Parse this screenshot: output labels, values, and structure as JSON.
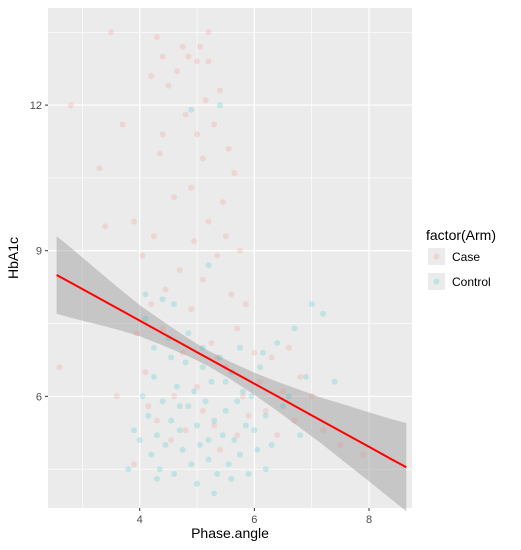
{
  "chart_data": {
    "type": "scatter",
    "xlabel": "Phase.angle",
    "ylabel": "HbA1c",
    "xlim": [
      2.4,
      8.75
    ],
    "ylim": [
      3.7,
      14.0
    ],
    "x_ticks": [
      4,
      6,
      8
    ],
    "y_ticks": [
      6,
      9,
      12
    ],
    "grid": true,
    "legend": {
      "title": "factor(Arm)",
      "position": "right"
    },
    "series": [
      {
        "name": "Case",
        "color": "#F8766D",
        "points": [
          [
            2.6,
            6.6
          ],
          [
            2.8,
            12.0
          ],
          [
            3.3,
            10.7
          ],
          [
            3.4,
            9.5
          ],
          [
            3.5,
            13.5
          ],
          [
            3.6,
            6.0
          ],
          [
            3.7,
            11.6
          ],
          [
            3.9,
            9.6
          ],
          [
            3.95,
            7.3
          ],
          [
            3.9,
            4.6
          ],
          [
            4.05,
            8.9
          ],
          [
            4.1,
            6.5
          ],
          [
            4.15,
            5.8
          ],
          [
            4.2,
            12.6
          ],
          [
            4.25,
            9.3
          ],
          [
            4.3,
            13.4
          ],
          [
            4.35,
            11.0
          ],
          [
            4.4,
            7.4
          ],
          [
            4.4,
            13.0
          ],
          [
            4.45,
            8.2
          ],
          [
            4.5,
            12.4
          ],
          [
            4.55,
            5.1
          ],
          [
            4.6,
            10.1
          ],
          [
            4.65,
            12.7
          ],
          [
            4.7,
            8.6
          ],
          [
            4.75,
            6.9
          ],
          [
            4.8,
            11.8
          ],
          [
            4.85,
            13.0
          ],
          [
            4.9,
            10.3
          ],
          [
            4.9,
            7.8
          ],
          [
            4.95,
            9.2
          ],
          [
            5.0,
            12.9
          ],
          [
            5.0,
            6.2
          ],
          [
            5.05,
            13.2
          ],
          [
            5.1,
            10.9
          ],
          [
            5.1,
            8.4
          ],
          [
            5.15,
            12.1
          ],
          [
            5.2,
            9.6
          ],
          [
            5.2,
            13.5
          ],
          [
            5.25,
            7.1
          ],
          [
            5.3,
            11.6
          ],
          [
            5.3,
            5.4
          ],
          [
            5.35,
            8.9
          ],
          [
            5.4,
            12.3
          ],
          [
            5.45,
            10.0
          ],
          [
            5.5,
            9.3
          ],
          [
            5.5,
            6.6
          ],
          [
            5.55,
            11.1
          ],
          [
            5.6,
            8.1
          ],
          [
            5.65,
            10.6
          ],
          [
            5.7,
            7.4
          ],
          [
            5.75,
            9.0
          ],
          [
            5.8,
            6.0
          ],
          [
            5.85,
            7.9
          ],
          [
            5.9,
            5.6
          ],
          [
            6.0,
            6.9
          ],
          [
            6.1,
            6.3
          ],
          [
            6.2,
            5.7
          ],
          [
            6.3,
            6.8
          ],
          [
            6.4,
            5.2
          ],
          [
            6.5,
            6.1
          ],
          [
            6.6,
            7.0
          ],
          [
            6.7,
            5.5
          ],
          [
            6.8,
            6.4
          ],
          [
            7.0,
            6.0
          ],
          [
            7.2,
            5.3
          ],
          [
            7.5,
            5.0
          ],
          [
            7.9,
            4.8
          ],
          [
            4.3,
            5.5
          ],
          [
            4.6,
            6.0
          ],
          [
            4.8,
            5.3
          ],
          [
            5.1,
            5.7
          ],
          [
            5.4,
            4.9
          ],
          [
            5.7,
            5.2
          ],
          [
            4.2,
            7.9
          ],
          [
            4.4,
            11.4
          ],
          [
            5.0,
            11.4
          ],
          [
            5.2,
            12.9
          ],
          [
            4.75,
            13.2
          ],
          [
            5.35,
            6.8
          ]
        ]
      },
      {
        "name": "Control",
        "color": "#00BFC4",
        "points": [
          [
            3.8,
            4.5
          ],
          [
            3.9,
            5.3
          ],
          [
            4.0,
            5.1
          ],
          [
            4.05,
            6.0
          ],
          [
            4.1,
            8.1
          ],
          [
            4.15,
            5.6
          ],
          [
            4.2,
            4.8
          ],
          [
            4.25,
            6.4
          ],
          [
            4.3,
            5.2
          ],
          [
            4.35,
            4.5
          ],
          [
            4.4,
            5.9
          ],
          [
            4.45,
            5.0
          ],
          [
            4.5,
            7.2
          ],
          [
            4.55,
            5.5
          ],
          [
            4.6,
            4.4
          ],
          [
            4.65,
            6.2
          ],
          [
            4.7,
            5.3
          ],
          [
            4.75,
            4.9
          ],
          [
            4.8,
            6.7
          ],
          [
            4.85,
            5.8
          ],
          [
            4.9,
            4.6
          ],
          [
            4.95,
            6.1
          ],
          [
            5.0,
            5.4
          ],
          [
            5.05,
            5.0
          ],
          [
            5.1,
            7.0
          ],
          [
            5.15,
            5.9
          ],
          [
            5.2,
            4.7
          ],
          [
            5.25,
            6.3
          ],
          [
            5.3,
            5.5
          ],
          [
            5.35,
            4.4
          ],
          [
            5.4,
            6.8
          ],
          [
            5.45,
            5.2
          ],
          [
            5.5,
            5.7
          ],
          [
            5.55,
            4.6
          ],
          [
            5.6,
            6.5
          ],
          [
            5.65,
            5.1
          ],
          [
            5.7,
            5.9
          ],
          [
            5.75,
            4.8
          ],
          [
            5.8,
            6.1
          ],
          [
            5.85,
            5.4
          ],
          [
            5.9,
            4.4
          ],
          [
            5.95,
            6.0
          ],
          [
            6.0,
            5.3
          ],
          [
            6.05,
            4.9
          ],
          [
            6.1,
            6.6
          ],
          [
            6.2,
            5.6
          ],
          [
            6.3,
            5.0
          ],
          [
            6.4,
            7.1
          ],
          [
            6.5,
            5.8
          ],
          [
            6.6,
            6.0
          ],
          [
            6.7,
            7.4
          ],
          [
            6.8,
            5.2
          ],
          [
            6.9,
            6.4
          ],
          [
            7.0,
            7.9
          ],
          [
            7.2,
            7.7
          ],
          [
            7.4,
            6.3
          ],
          [
            4.1,
            7.6
          ],
          [
            4.4,
            8.0
          ],
          [
            4.6,
            7.9
          ],
          [
            5.2,
            8.7
          ],
          [
            5.4,
            12.0
          ],
          [
            4.9,
            11.9
          ],
          [
            5.0,
            4.2
          ],
          [
            5.3,
            4.0
          ],
          [
            4.3,
            4.3
          ],
          [
            5.6,
            4.3
          ],
          [
            6.2,
            4.5
          ],
          [
            4.7,
            5.8
          ],
          [
            5.2,
            5.1
          ],
          [
            5.5,
            6.3
          ],
          [
            4.85,
            7.3
          ],
          [
            5.1,
            6.6
          ],
          [
            5.75,
            7.0
          ],
          [
            6.15,
            6.9
          ],
          [
            4.55,
            6.8
          ],
          [
            4.25,
            7.0
          ]
        ]
      }
    ],
    "trend": {
      "color": "#FF0000",
      "band_color": "#999999",
      "x": [
        2.55,
        2.8,
        3.2,
        3.6,
        4.0,
        4.4,
        4.8,
        5.0,
        5.2,
        5.6,
        6.0,
        6.4,
        6.8,
        7.2,
        7.6,
        8.0,
        8.4,
        8.65
      ],
      "y": [
        8.5,
        8.34,
        8.08,
        7.82,
        7.56,
        7.3,
        7.04,
        6.91,
        6.78,
        6.52,
        6.26,
        6.0,
        5.74,
        5.48,
        5.22,
        4.96,
        4.7,
        4.54
      ],
      "lower": [
        7.7,
        7.62,
        7.5,
        7.38,
        7.24,
        7.05,
        6.85,
        6.74,
        6.62,
        6.34,
        6.03,
        5.7,
        5.35,
        5.0,
        4.62,
        4.25,
        3.87,
        3.63
      ],
      "upper": [
        9.3,
        9.06,
        8.66,
        8.26,
        7.88,
        7.55,
        7.23,
        7.08,
        6.94,
        6.7,
        6.49,
        6.3,
        6.13,
        5.96,
        5.82,
        5.67,
        5.53,
        5.45
      ]
    }
  }
}
